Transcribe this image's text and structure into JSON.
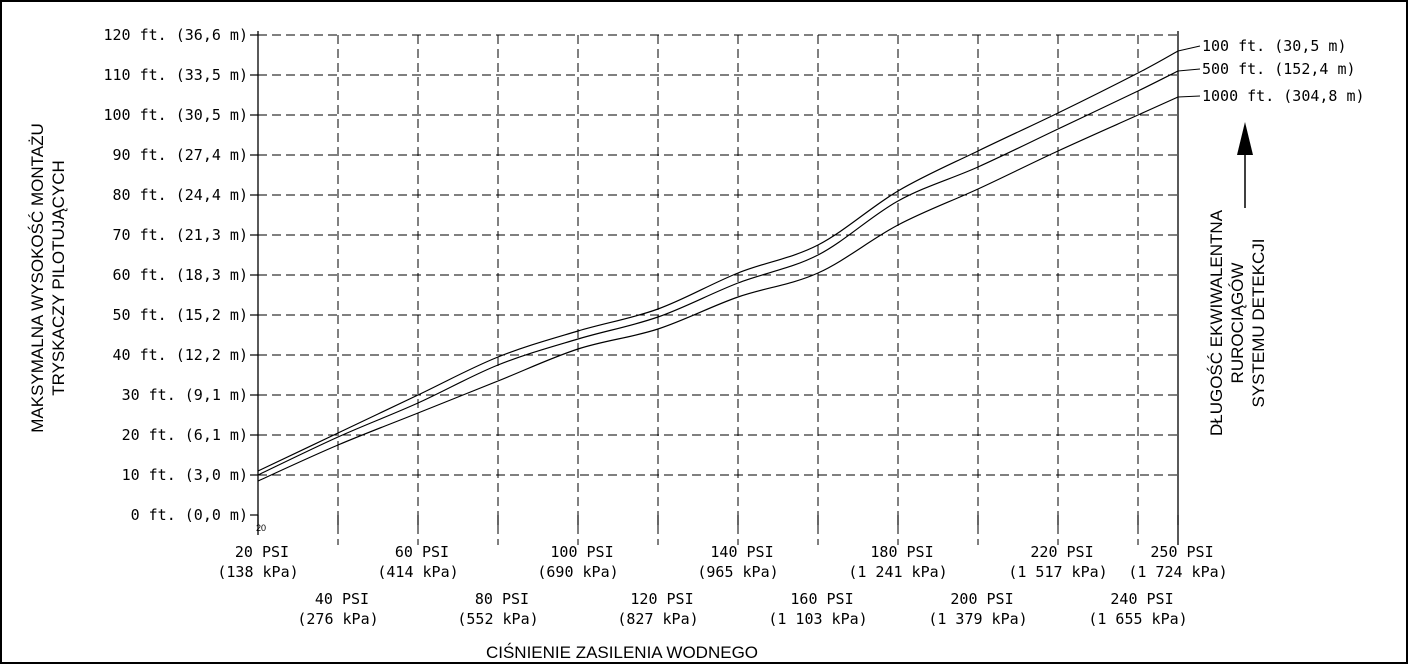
{
  "chart_data": {
    "type": "line",
    "xlabel": "CIŚNIENIE ZASILENIA WODNEGO",
    "ylabel_lines": [
      "MAKSYMALNA WYSOKOŚĆ MONTAŻU",
      "TRYSKACZY PILOTUJĄCYCH"
    ],
    "legend_title_lines": [
      "DŁUGOŚĆ EKWIWALENTNA",
      "RUROCIĄGÓW",
      "SYSTEMU DETEKCJI"
    ],
    "corner_mark": "20",
    "xlim": [
      20,
      250
    ],
    "ylim": [
      0,
      120
    ],
    "grid": true,
    "legend_placement": "right",
    "x_ticks": [
      {
        "x": 20,
        "psi": "20 PSI",
        "kpa": "(138 kPa)",
        "row": 1
      },
      {
        "x": 40,
        "psi": "40 PSI",
        "kpa": "(276 kPa)",
        "row": 2
      },
      {
        "x": 60,
        "psi": "60 PSI",
        "kpa": "(414 kPa)",
        "row": 1
      },
      {
        "x": 80,
        "psi": "80 PSI",
        "kpa": "(552 kPa)",
        "row": 2
      },
      {
        "x": 100,
        "psi": "100 PSI",
        "kpa": "(690 kPa)",
        "row": 1
      },
      {
        "x": 120,
        "psi": "120 PSI",
        "kpa": "(827 kPa)",
        "row": 2
      },
      {
        "x": 140,
        "psi": "140 PSI",
        "kpa": "(965 kPa)",
        "row": 1
      },
      {
        "x": 160,
        "psi": "160 PSI",
        "kpa": "(1 103 kPa)",
        "row": 2
      },
      {
        "x": 180,
        "psi": "180 PSI",
        "kpa": "(1 241 kPa)",
        "row": 1
      },
      {
        "x": 200,
        "psi": "200 PSI",
        "kpa": "(1 379 kPa)",
        "row": 2
      },
      {
        "x": 220,
        "psi": "220 PSI",
        "kpa": "(1 517 kPa)",
        "row": 1
      },
      {
        "x": 240,
        "psi": "240 PSI",
        "kpa": "(1 655 kPa)",
        "row": 2
      },
      {
        "x": 250,
        "psi": "250 PSI",
        "kpa": "(1 724 kPa)",
        "row": 1
      }
    ],
    "y_ticks": [
      {
        "y": 0,
        "label": "0 ft. (0,0 m)"
      },
      {
        "y": 10,
        "label": "10 ft. (3,0 m)"
      },
      {
        "y": 20,
        "label": "20 ft. (6,1 m)"
      },
      {
        "y": 30,
        "label": "30 ft. (9,1 m)"
      },
      {
        "y": 40,
        "label": "40 ft. (12,2 m)"
      },
      {
        "y": 50,
        "label": "50 ft. (15,2 m)"
      },
      {
        "y": 60,
        "label": "60 ft. (18,3 m)"
      },
      {
        "y": 70,
        "label": "70 ft. (21,3 m)"
      },
      {
        "y": 80,
        "label": "80 ft. (24,4 m)"
      },
      {
        "y": 90,
        "label": "90 ft. (27,4 m)"
      },
      {
        "y": 100,
        "label": "100 ft. (30,5 m)"
      },
      {
        "y": 110,
        "label": "110 ft. (33,5 m)"
      },
      {
        "y": 120,
        "label": "120 ft. (36,6 m)"
      }
    ],
    "x": [
      20,
      40,
      60,
      80,
      100,
      120,
      140,
      160,
      180,
      200,
      220,
      240,
      250
    ],
    "series": [
      {
        "name": "100 ft. (30,5 m)",
        "values": [
          11,
          20.5,
          30,
          39.5,
          46,
          51.5,
          60.5,
          67.5,
          81,
          91,
          100.5,
          110.5,
          116
        ]
      },
      {
        "name": "500 ft. (152,4 m)",
        "values": [
          10,
          19.5,
          28,
          37.5,
          44,
          49.5,
          58,
          65,
          78.5,
          87,
          96.5,
          106,
          111
        ]
      },
      {
        "name": "1000 ft. (304,8 m)",
        "values": [
          8.5,
          17.5,
          25.5,
          33.5,
          41.5,
          46.5,
          54.5,
          60.5,
          72.5,
          81.5,
          91,
          100,
          104.5
        ]
      }
    ]
  }
}
